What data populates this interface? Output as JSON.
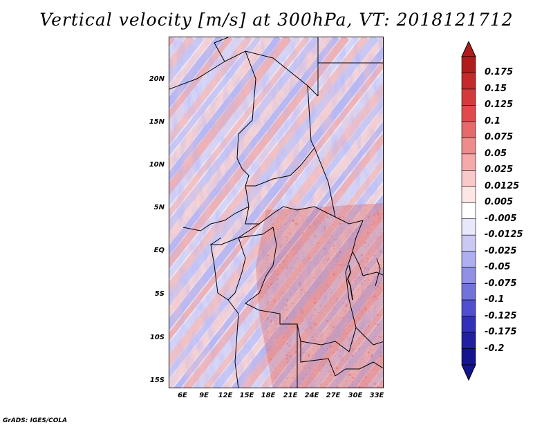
{
  "title": "Vertical velocity [m/s] at 300hPa, VT: 2018121712",
  "credit": "GrADS: IGES/COLA",
  "map": {
    "lat_labels": [
      "20N",
      "15N",
      "10N",
      "5N",
      "EQ",
      "5S",
      "10S",
      "15S"
    ],
    "lon_labels": [
      "6E",
      "9E",
      "12E",
      "15E",
      "18E",
      "21E",
      "24E",
      "27E",
      "30E",
      "33E"
    ],
    "lat_range": [
      -16,
      24
    ],
    "lon_range": [
      4,
      34
    ],
    "field_pattern": "Mostly weak alternating positive/negative bands oriented SW-NE over the Sahel and north; strong positive (upward) velocities over the Congo basin and southern Africa (DRC, Angola, Zambia)"
  },
  "colorbar": {
    "labels": [
      "0.175",
      "0.15",
      "0.125",
      "0.1",
      "0.075",
      "0.05",
      "0.025",
      "0.0125",
      "0.005",
      "-0.005",
      "-0.0125",
      "-0.025",
      "-0.05",
      "-0.075",
      "-0.1",
      "-0.125",
      "-0.175",
      "-0.2"
    ],
    "colors": [
      "#b01c1c",
      "#c42a2a",
      "#d53a3a",
      "#e04a4a",
      "#e66a6a",
      "#ee8c8c",
      "#f4aaaa",
      "#f9c8c8",
      "#fde6e6",
      "#ffffff",
      "#e8e8fb",
      "#c9c9f3",
      "#aeaef0",
      "#9090e6",
      "#7272db",
      "#5050cf",
      "#3030b8",
      "#2020a0",
      "#14148c"
    ]
  }
}
